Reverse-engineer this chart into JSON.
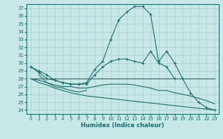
{
  "xlabel": "Humidex (Indice chaleur)",
  "ylabel": "",
  "xlim": [
    -0.5,
    23.5
  ],
  "ylim": [
    23.5,
    37.5
  ],
  "yticks": [
    24,
    25,
    26,
    27,
    28,
    29,
    30,
    31,
    32,
    33,
    34,
    35,
    36,
    37
  ],
  "xticks": [
    0,
    1,
    2,
    3,
    4,
    5,
    6,
    7,
    8,
    9,
    10,
    11,
    12,
    13,
    14,
    15,
    16,
    17,
    18,
    19,
    20,
    21,
    22,
    23
  ],
  "background_color": "#c8e8e8",
  "line_color": "#1a6b6b",
  "grid_color": "#a8cccc",
  "lines": [
    {
      "x": [
        0,
        1,
        2,
        3,
        4,
        5,
        6,
        7,
        8,
        9,
        10,
        11,
        12,
        13,
        14,
        15,
        16,
        17,
        18,
        19,
        20,
        21,
        22,
        23
      ],
      "y": [
        29.5,
        28.8,
        28.0,
        27.8,
        27.5,
        27.3,
        27.3,
        27.5,
        29.2,
        30.2,
        33.0,
        35.5,
        36.5,
        37.2,
        37.2,
        36.2,
        30.2,
        31.5,
        30.0,
        28.0,
        26.2,
        25.0,
        24.3,
        24.0
      ],
      "marker": "+"
    },
    {
      "x": [
        0,
        23
      ],
      "y": [
        28.0,
        28.0
      ],
      "marker": null
    },
    {
      "x": [
        0,
        1,
        2,
        3,
        4,
        5,
        6,
        7,
        8,
        9,
        10,
        11,
        12,
        13,
        14,
        15,
        16,
        17,
        18
      ],
      "y": [
        29.5,
        29.0,
        28.5,
        27.8,
        27.5,
        27.3,
        27.3,
        27.3,
        28.5,
        29.5,
        30.2,
        30.5,
        30.5,
        30.2,
        30.0,
        31.5,
        30.0,
        29.5,
        28.0
      ],
      "marker": "+"
    },
    {
      "x": [
        0,
        1,
        2,
        3,
        4,
        5,
        6,
        7,
        8,
        9,
        10,
        11,
        12,
        13,
        14,
        15,
        16,
        17,
        18,
        19,
        20,
        21,
        22,
        23
      ],
      "y": [
        28.0,
        27.8,
        27.5,
        27.2,
        27.0,
        27.0,
        26.8,
        26.8,
        27.0,
        27.2,
        27.3,
        27.3,
        27.3,
        27.2,
        27.0,
        26.8,
        26.5,
        26.5,
        26.2,
        26.0,
        25.8,
        25.5,
        25.2,
        24.8
      ],
      "marker": null
    },
    {
      "x": [
        0,
        1,
        2,
        3,
        4,
        5,
        6,
        7,
        23
      ],
      "y": [
        28.0,
        27.5,
        27.2,
        26.8,
        26.5,
        26.2,
        26.0,
        25.8,
        24.0
      ],
      "marker": null
    },
    {
      "x": [
        1,
        2,
        3,
        4,
        5,
        6,
        7
      ],
      "y": [
        28.5,
        27.5,
        27.0,
        26.8,
        26.5,
        26.3,
        26.5
      ],
      "marker": null
    }
  ]
}
